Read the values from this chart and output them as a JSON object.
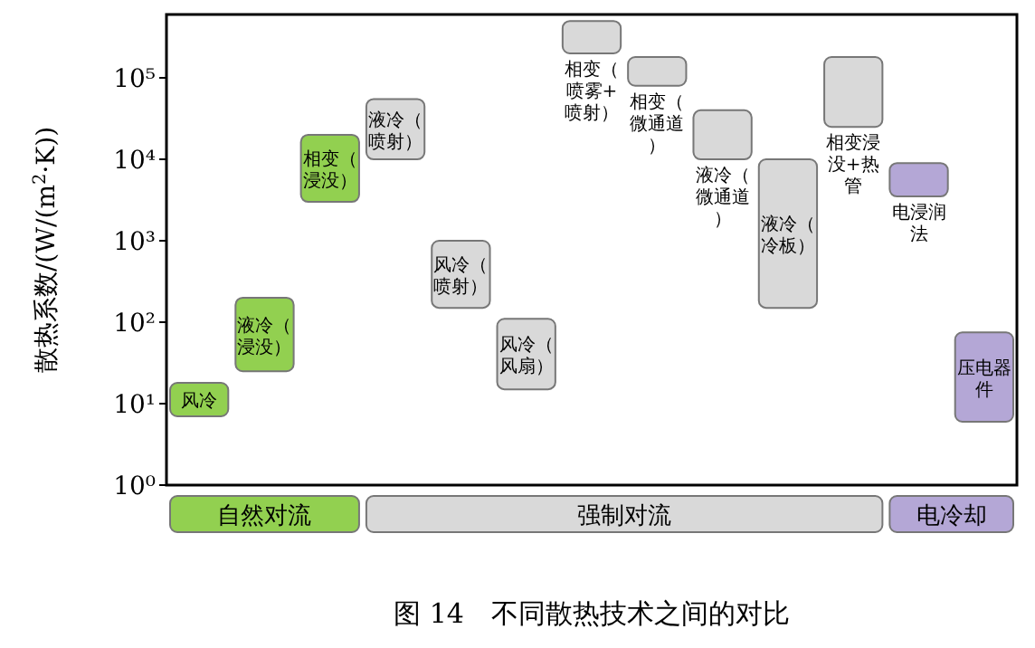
{
  "chart_data": {
    "type": "bar",
    "title": "图 14　不同散热技术之间的对比",
    "ylabel": "散热系数/(W/(m$^{2}$·K))",
    "categories": [
      "风冷",
      "液冷（浸没）",
      "相变（浸没）",
      "液冷（喷射）",
      "风冷（喷射）",
      "风冷（风扇）",
      "相变（喷雾+喷射）",
      "相变（微通道）",
      "液冷（微通道）",
      "液冷（冷板）",
      "相变浸没+热管",
      "电浸润法",
      "压电器件"
    ],
    "base": [
      7,
      25,
      3000,
      10000,
      150,
      15,
      200000,
      80000,
      10000,
      150,
      25000,
      3500,
      6
    ],
    "values": [
      11,
      175,
      17000,
      45000,
      850,
      95,
      300000,
      100000,
      30000,
      9850,
      155000,
      5500,
      69
    ],
    "colors": [
      "#92d050",
      "#92d050",
      "#92d050",
      "#d9d9d9",
      "#d9d9d9",
      "#d9d9d9",
      "#d9d9d9",
      "#d9d9d9",
      "#d9d9d9",
      "#d9d9d9",
      "#d9d9d9",
      "#b4a7d6",
      "#b4a7d6"
    ],
    "annotations": [
      "自然对流",
      "强制对流",
      "电冷却"
    ],
    "log": true,
    "ylim": [
      1,
      600000
    ],
    "yticks": [
      {
        "value": 1,
        "label": "10⁰"
      },
      {
        "value": 10,
        "label": "10¹"
      },
      {
        "value": 100,
        "label": "10²"
      },
      {
        "value": 1000,
        "label": "10³"
      },
      {
        "value": 10000,
        "label": "10⁴"
      },
      {
        "value": 100000,
        "label": "10⁵"
      }
    ],
    "grid": false
  }
}
